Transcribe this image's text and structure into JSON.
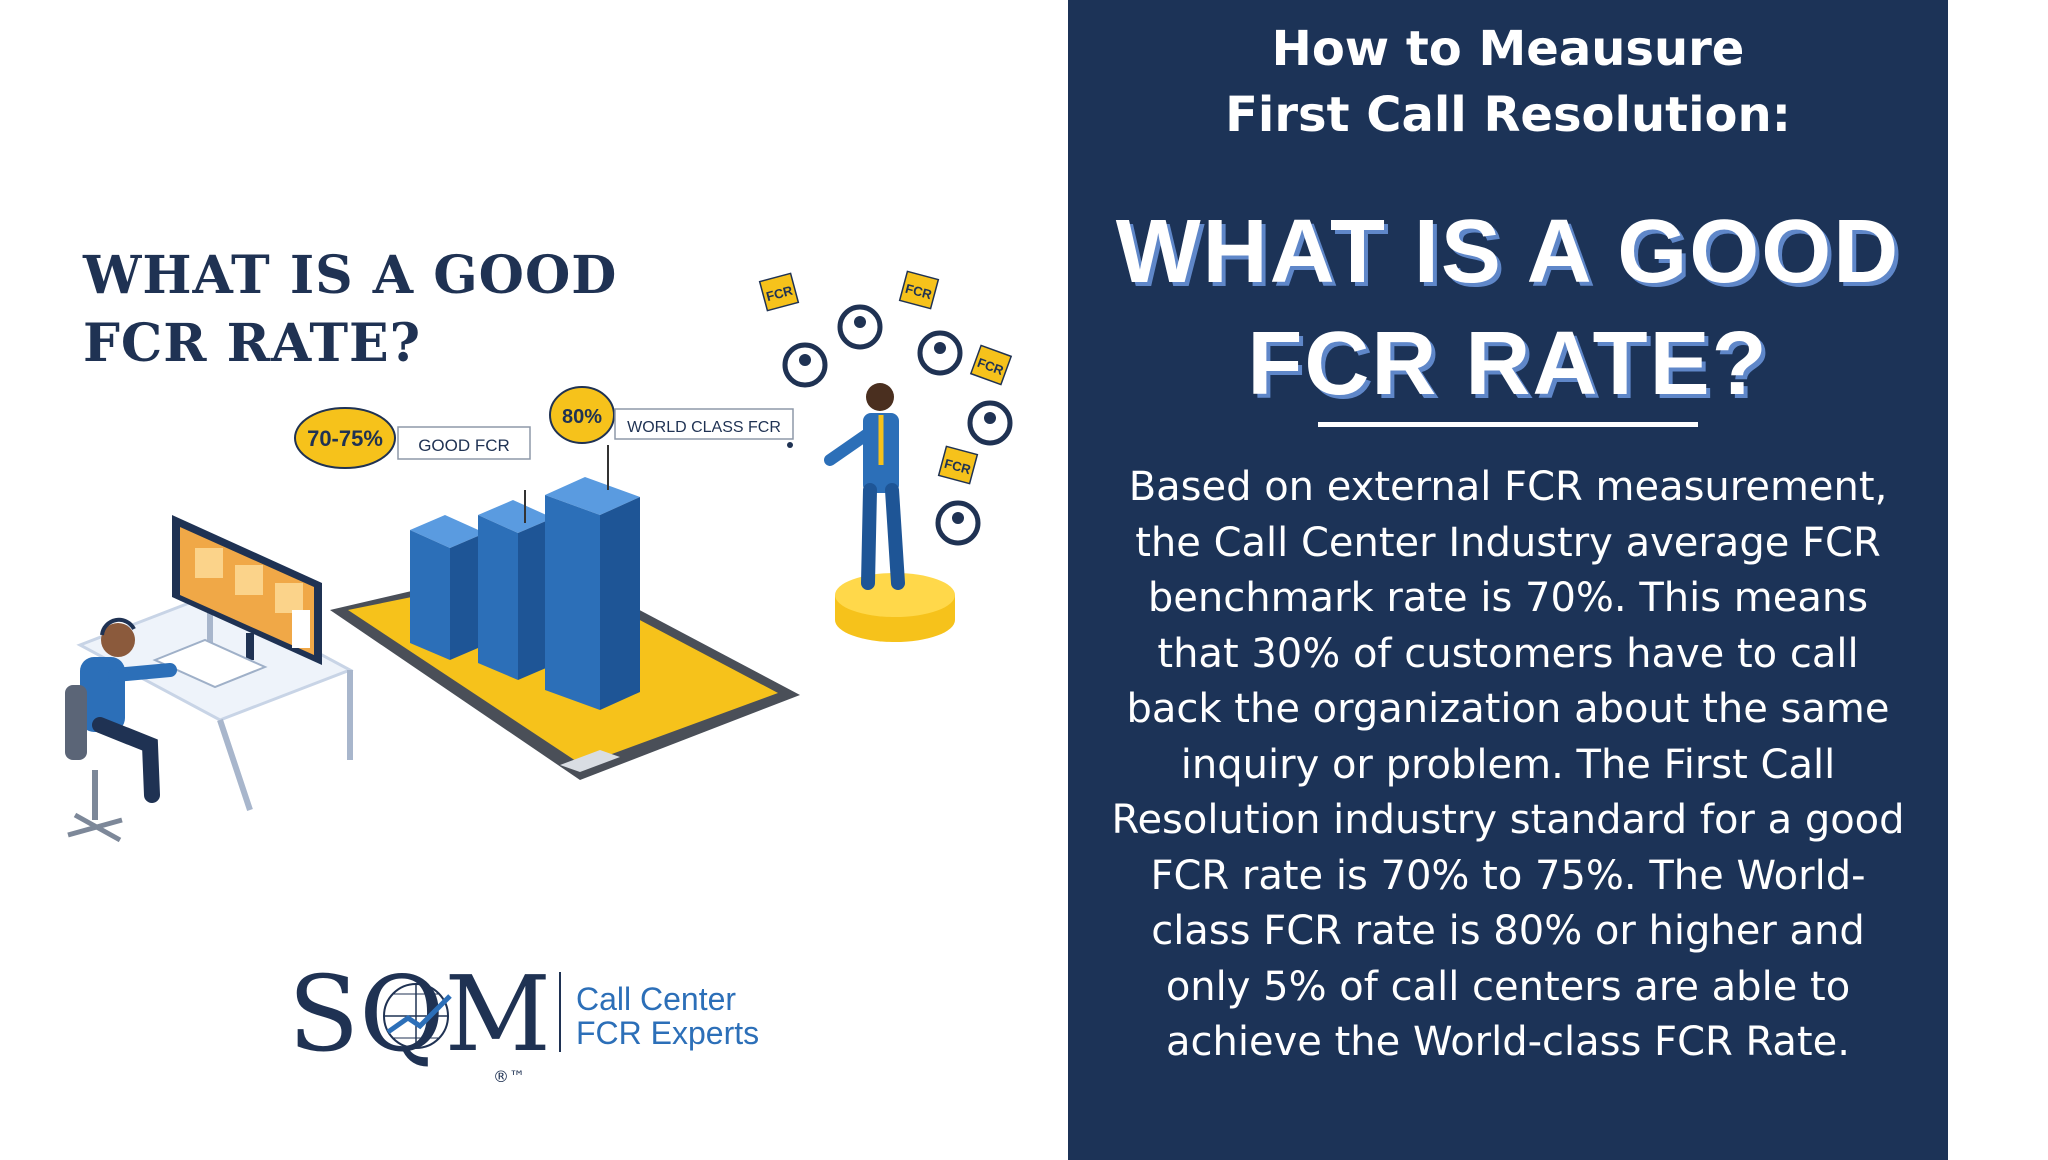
{
  "left": {
    "title_line1": "WHAT IS A GOOD",
    "title_line2": "FCR RATE?"
  },
  "illustration": {
    "good_pct": "70-75%",
    "good_label": "GOOD FCR",
    "world_pct": "80%",
    "world_label": "WORLD CLASS FCR",
    "fcr_tag": "FCR"
  },
  "logo": {
    "letters": "SQM",
    "line1": "Call Center",
    "line2": "FCR Experts",
    "mark": "®™"
  },
  "right": {
    "subtitle_line1": "How to Meausure",
    "subtitle_line2": "First Call Resolution:",
    "title_line1": "WHAT IS A GOOD",
    "title_line2": "FCR RATE?",
    "body": "Based on external FCR measurement, the Call Center Industry average FCR benchmark rate is 70%. This means that 30% of customers have to call back the organization about the same inquiry or problem. The First Call Resolution industry standard for a good FCR rate is 70% to 75%. The World-class FCR rate is 80% or higher and only 5% of call centers are able to achieve the World-class FCR Rate."
  },
  "colors": {
    "navy": "#1c3357",
    "title_shadow": "#5f87c9",
    "accent_yellow": "#f6c21b",
    "bar_blue": "#2c6fb8"
  }
}
